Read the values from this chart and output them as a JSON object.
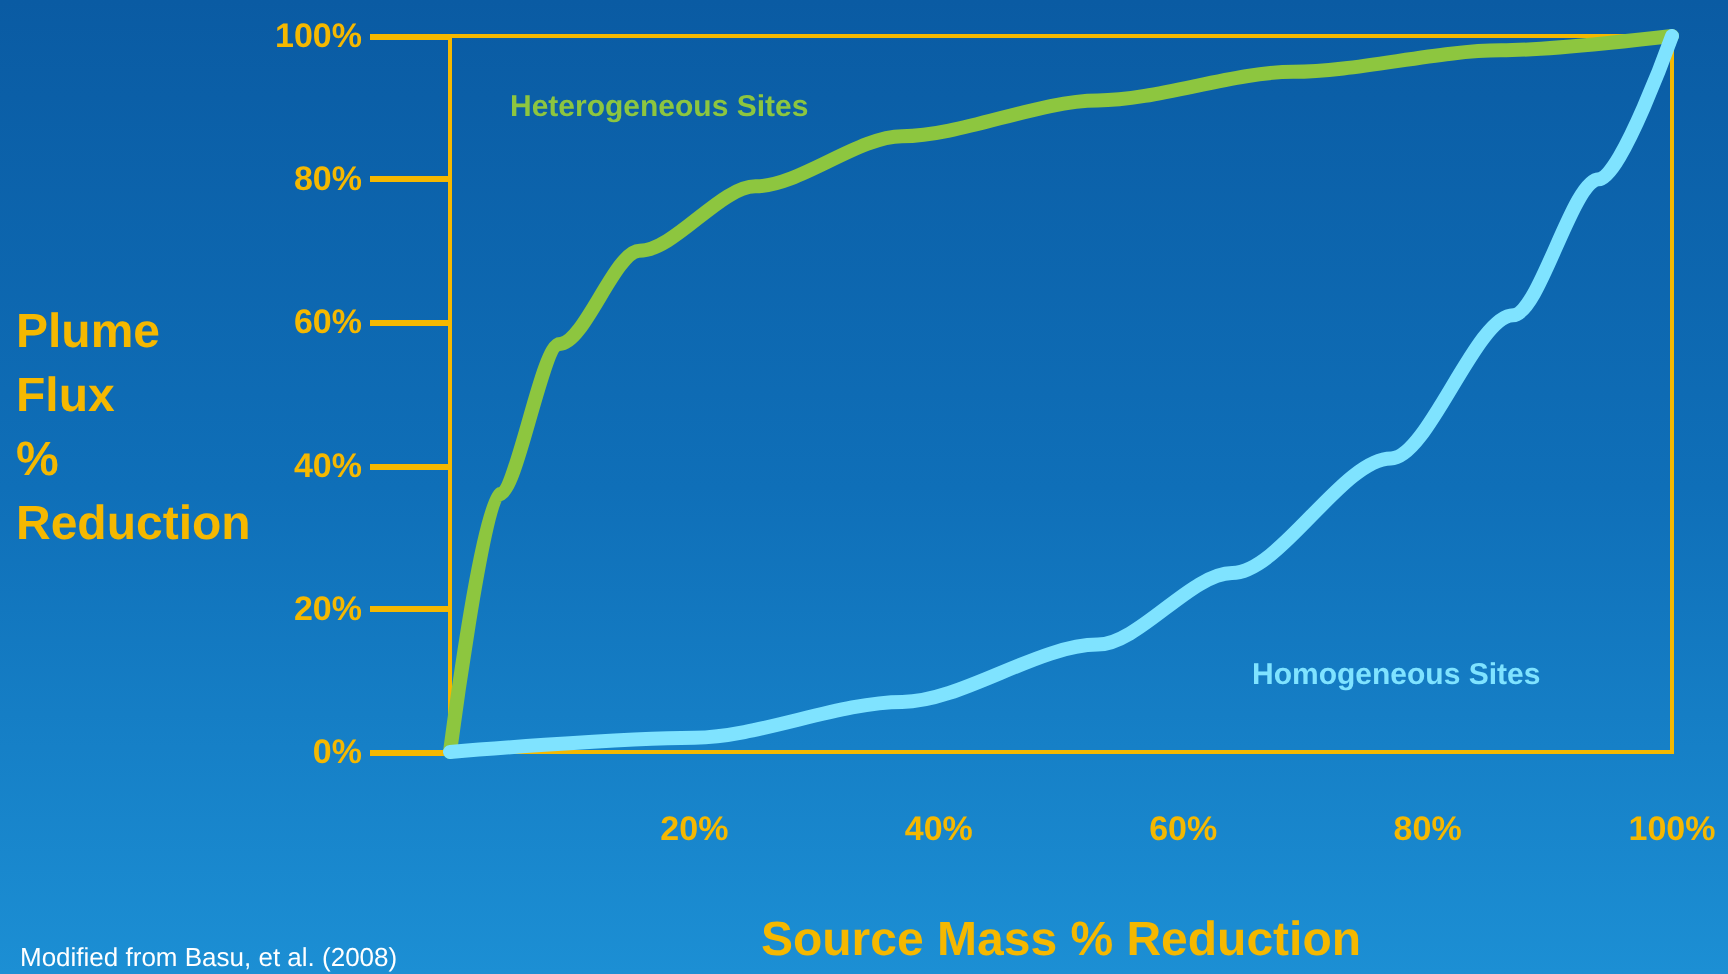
{
  "chart_data": {
    "type": "line",
    "xlabel": "Source Mass % Reduction",
    "ylabel": "Plume Flux % Reduction",
    "annotations": [
      "Modified from Basu, et al. (2008)"
    ],
    "xlim": [
      0,
      100
    ],
    "xticks": [
      {
        "value": 20,
        "label": "20%"
      },
      {
        "value": 40,
        "label": "40%"
      },
      {
        "value": 60,
        "label": "60%"
      },
      {
        "value": 80,
        "label": "80%"
      },
      {
        "value": 100,
        "label": "100%"
      }
    ],
    "ylim": [
      0,
      100
    ],
    "yticks": [
      {
        "value": 0,
        "label": "0%"
      },
      {
        "value": 20,
        "label": "20%"
      },
      {
        "value": 40,
        "label": "40%"
      },
      {
        "value": 60,
        "label": "60%"
      },
      {
        "value": 80,
        "label": "80%"
      },
      {
        "value": 100,
        "label": "100%"
      }
    ],
    "grid": false,
    "legend": false,
    "marker": "none",
    "line_style": "solid",
    "series": [
      {
        "name": "Heterogeneous Sites",
        "color": "#8dc63f",
        "x": [
          0,
          4,
          9,
          15.5,
          25,
          37,
          53,
          69,
          86,
          100
        ],
        "values": [
          0,
          36,
          57,
          70,
          79,
          86,
          91,
          95,
          98,
          100
        ]
      },
      {
        "name": "Homogeneous Sites",
        "color": "#7fe3ff",
        "x": [
          0,
          20,
          37,
          53,
          64,
          77,
          87,
          94,
          100
        ],
        "values": [
          0,
          2,
          7,
          15,
          25,
          41,
          61,
          80,
          100
        ]
      }
    ]
  }
}
